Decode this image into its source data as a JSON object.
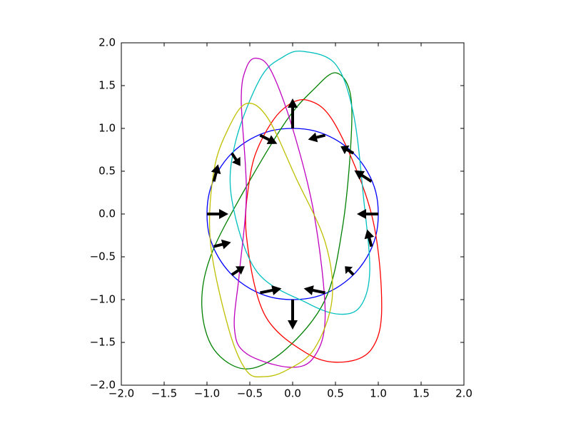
{
  "chart_data": {
    "type": "line",
    "xlim": [
      -2,
      2
    ],
    "ylim": [
      -2,
      2
    ],
    "xticks": [
      {
        "value": -2,
        "label": "−2.0"
      },
      {
        "value": -1.5,
        "label": "−1.5"
      },
      {
        "value": -1,
        "label": "−1.0"
      },
      {
        "value": -0.5,
        "label": "−0.5"
      },
      {
        "value": 0,
        "label": "0.0"
      },
      {
        "value": 0.5,
        "label": "0.5"
      },
      {
        "value": 1,
        "label": "1.0"
      },
      {
        "value": 1.5,
        "label": "1.5"
      },
      {
        "value": 2,
        "label": "2.0"
      }
    ],
    "yticks": [
      {
        "value": -2,
        "label": "−2.0"
      },
      {
        "value": -1.5,
        "label": "−1.5"
      },
      {
        "value": -1,
        "label": "−1.0"
      },
      {
        "value": -0.5,
        "label": "−0.5"
      },
      {
        "value": 0,
        "label": "0.0"
      },
      {
        "value": 0.5,
        "label": "0.5"
      },
      {
        "value": 1,
        "label": "1.0"
      },
      {
        "value": 1.5,
        "label": "1.5"
      },
      {
        "value": 2,
        "label": "2.0"
      }
    ],
    "series": [
      {
        "color": "#0000ff",
        "x": [
          1,
          0.97,
          0.87,
          0.71,
          0.5,
          0.26,
          0,
          -0.26,
          -0.5,
          -0.71,
          -0.87,
          -0.97,
          -1,
          -0.97,
          -0.87,
          -0.71,
          -0.5,
          -0.26,
          0,
          0.26,
          0.5,
          0.71,
          0.87,
          0.97
        ],
        "values": [
          0,
          0.26,
          0.5,
          0.71,
          0.87,
          0.97,
          1,
          0.97,
          0.87,
          0.71,
          0.5,
          0.26,
          0,
          -0.26,
          -0.5,
          -0.71,
          -0.87,
          -0.97,
          -1,
          -0.97,
          -0.87,
          -0.71,
          -0.5,
          -0.26
        ]
      },
      {
        "color": "#008000",
        "x": [
          0.5,
          0.67,
          0.68,
          0.58,
          0.38,
          -0.08,
          -0.54,
          -0.92,
          -1.06,
          -0.96,
          -0.58,
          -0.08,
          0.25
        ],
        "values": [
          1.65,
          1.42,
          0.83,
          -0.17,
          -1.0,
          -1.58,
          -1.81,
          -1.58,
          -1.08,
          -0.5,
          0.25,
          1.08,
          1.46
        ]
      },
      {
        "color": "#ff0000",
        "x": [
          0.17,
          0.5,
          0.92,
          1.04,
          0.92,
          0.58,
          0.17,
          -0.33,
          -0.54,
          -0.5,
          -0.38,
          -0.13
        ],
        "values": [
          1.33,
          1.04,
          0,
          -1.08,
          -1.58,
          -1.73,
          -1.63,
          -1.17,
          -0.25,
          0.42,
          0.83,
          1.21
        ]
      },
      {
        "color": "#00bfbf",
        "x": [
          0.12,
          0.5,
          0.71,
          0.83,
          0.9,
          0.79,
          0.54,
          0.17,
          -0.42,
          -0.71,
          -0.67,
          -0.38,
          -0.12
        ],
        "values": [
          1.9,
          1.75,
          1.17,
          0.17,
          -0.67,
          -1.08,
          -1.17,
          -1.04,
          -0.67,
          0.17,
          0.83,
          1.58,
          1.83
        ]
      },
      {
        "color": "#bf00bf",
        "x": [
          -0.42,
          -0.25,
          0,
          0.25,
          0.38,
          0.25,
          -0.04,
          -0.54,
          -0.68,
          -0.62,
          -0.54,
          -0.6,
          -0.54
        ],
        "values": [
          1.82,
          1.67,
          1.0,
          0,
          -1.17,
          -1.67,
          -1.79,
          -1.63,
          -1.33,
          -0.67,
          0.25,
          1.33,
          1.71
        ]
      },
      {
        "color": "#bfbf00",
        "x": [
          -0.54,
          -0.29,
          0.04,
          0.38,
          0.46,
          0.25,
          -0.08,
          -0.33,
          -0.54,
          -0.75,
          -0.96,
          -0.92,
          -0.75
        ],
        "values": [
          1.29,
          1.12,
          0.42,
          -0.33,
          -1.0,
          -1.58,
          -1.83,
          -1.9,
          -1.83,
          -1.33,
          -0.33,
          0.5,
          1.0
        ]
      }
    ],
    "quiver": {
      "color": "#000000",
      "x": [
        1,
        0.92,
        0.71,
        0.38,
        0,
        -0.38,
        -0.71,
        -0.92,
        -1,
        -0.92,
        -0.71,
        -0.38,
        0,
        0.38,
        0.71,
        0.92
      ],
      "y": [
        0,
        0.38,
        0.71,
        0.92,
        1,
        0.92,
        0.71,
        0.38,
        0,
        -0.38,
        -0.71,
        -0.92,
        -1,
        -0.92,
        -0.71,
        -0.38
      ],
      "u": [
        -0.25,
        -0.2,
        -0.15,
        -0.2,
        0,
        0.2,
        0.1,
        0.05,
        0.25,
        0.2,
        0.15,
        0.25,
        0,
        -0.25,
        -0.1,
        -0.05
      ],
      "v": [
        0,
        0.13,
        0.08,
        -0.05,
        0.35,
        -0.1,
        -0.15,
        0.2,
        0,
        0.05,
        0.1,
        0.05,
        -0.35,
        0.05,
        0.1,
        0.2
      ]
    }
  }
}
